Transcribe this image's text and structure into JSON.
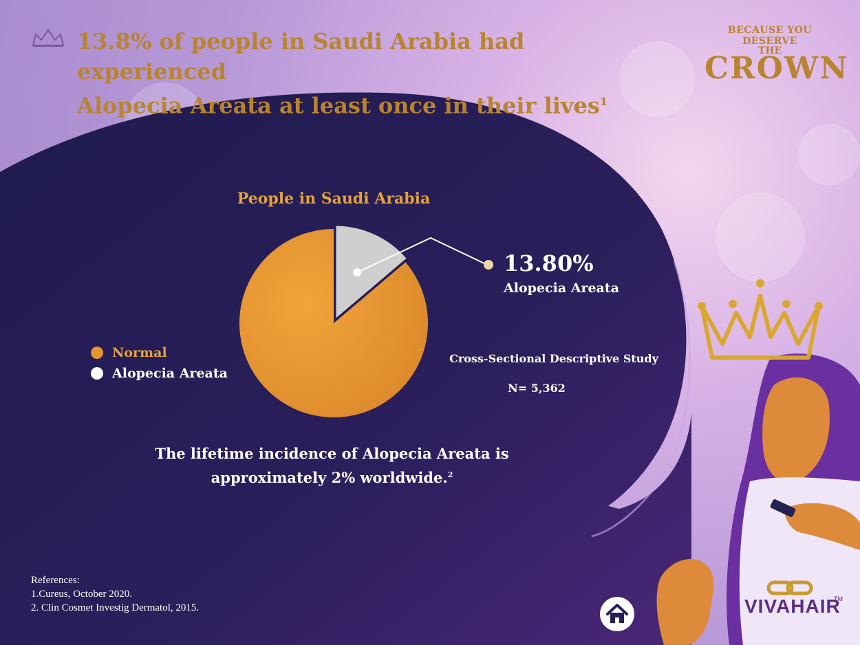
{
  "header": {
    "title_line1": "13.8% of people in Saudi Arabia had experienced",
    "title_line2": "Alopecia Areata  at least once in their lives",
    "title_ref": "1",
    "icon": "tiara-icon"
  },
  "brand": {
    "tagline": "Because you deserve",
    "line2": "The",
    "word": "Crown",
    "logo_text": "VIVAHAIR",
    "trademark": "TM"
  },
  "chart_data": {
    "type": "pie",
    "title": "People in Saudi Arabia",
    "slices": [
      {
        "label": "Normal",
        "value": 86.2,
        "color": "#e4962f"
      },
      {
        "label": "Alopecia Areata",
        "value": 13.8,
        "color": "#cfcfcf"
      }
    ],
    "legend": [
      "Normal",
      "Alopecia Areata"
    ],
    "legend_position": "left",
    "annotation": {
      "value": "13.80%",
      "label": "Alopecia Areata"
    }
  },
  "study": {
    "design": "Cross-Sectional Descriptive Study",
    "sample": "N= 5,362"
  },
  "incidence": {
    "line1": "The lifetime incidence of Alopecia Areata  is",
    "line2": "approximately 2% worldwide.",
    "ref": "2"
  },
  "references": {
    "heading": "References:",
    "items": [
      "1.Cureus, October 2020.",
      "2. Clin Cosmet Investig Dermatol, 2015."
    ]
  },
  "nav": {
    "home_icon": "home-icon"
  },
  "colors": {
    "accent_gold": "#b8842f",
    "chart_orange": "#e4962f",
    "chart_gray": "#cfcfcf",
    "panel_dark": "#2a1d56",
    "legend_normal_text": "#e3a23a",
    "legend_aa_text": "#ffffff"
  }
}
